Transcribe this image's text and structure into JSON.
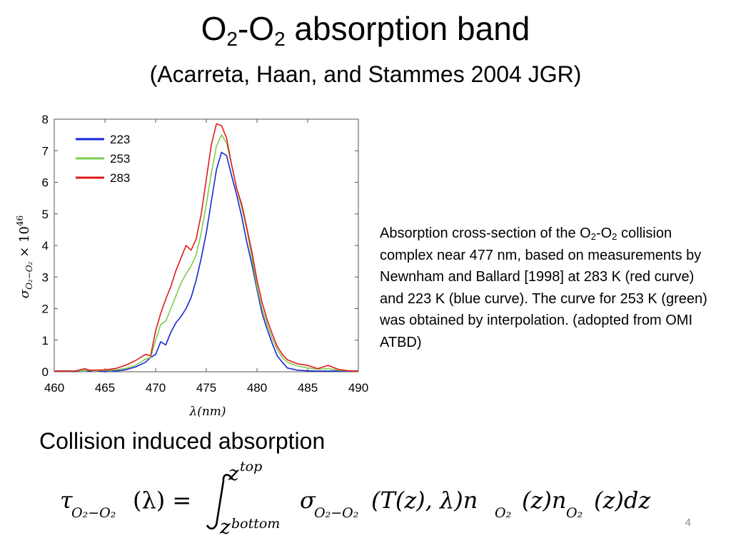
{
  "slide": {
    "title_part1": "O",
    "title_sub1": "2",
    "title_part2": "-O",
    "title_sub2": "2",
    "title_part3": " absorption band",
    "subtitle": "(Acarreta, Haan, and Stammes 2004 JGR)",
    "caption_part1": "Absorption cross-section of the O",
    "caption_sub1": "2",
    "caption_part2": "-O",
    "caption_sub2": "2",
    "caption_part3": " collision complex near 477 nm, based on measurements by Newnham and Ballard [1998] at 283 K (red curve) and 223 K (blue curve). The curve for 253 K (green) was obtained by interpolation. (adopted from OMI ATBD)",
    "section_heading": "Collision induced absorption",
    "page_number": "4"
  },
  "equation": {
    "lhs_tau": "τ",
    "lhs_sub": "O₂−O₂",
    "lhs_arg": "(λ) =",
    "upper_limit": "z",
    "upper_limit_sup": "top",
    "lower_limit": "z",
    "lower_limit_sub": "bottom",
    "integrand_sigma": "σ",
    "integrand_sigma_sub": "O₂−O₂",
    "integrand_args": "(T(z), λ)n",
    "n1_sub": "O₂",
    "mid": "(z)n",
    "n2_sub": "O₂",
    "tail": "(z)dz"
  },
  "chart_data": {
    "type": "line",
    "xlabel": "λ(nm)",
    "ylabel": "σ_{O₂−O₂} × 10⁴⁶",
    "ylabel_sigma": "σ",
    "ylabel_sub": "O₂−O₂",
    "ylabel_times": "× 10",
    "ylabel_exp": "46",
    "xlim": [
      460,
      490
    ],
    "ylim": [
      0,
      8
    ],
    "xticks": [
      460,
      465,
      470,
      475,
      480,
      485,
      490
    ],
    "yticks": [
      0,
      1,
      2,
      3,
      4,
      5,
      6,
      7,
      8
    ],
    "legend_position": "top-left",
    "grid": false,
    "series": [
      {
        "name": "223",
        "color": "#1a27d6",
        "x": [
          460,
          461,
          462,
          463,
          463.5,
          464,
          465,
          465.5,
          466,
          467,
          468,
          469,
          469.5,
          470,
          470.5,
          471,
          471.5,
          472,
          472.5,
          473,
          473.5,
          474,
          474.5,
          475,
          475.5,
          476,
          476.5,
          477,
          477.5,
          478,
          478.5,
          479,
          479.5,
          480,
          480.5,
          481,
          481.5,
          482,
          482.5,
          483,
          484,
          485,
          486,
          487,
          488,
          489,
          490
        ],
        "y": [
          0.02,
          0.03,
          0.02,
          0.05,
          0.02,
          0.05,
          0.0,
          0.04,
          0.02,
          0.06,
          0.15,
          0.3,
          0.45,
          0.55,
          0.95,
          0.85,
          1.25,
          1.55,
          1.75,
          2.0,
          2.35,
          2.9,
          3.6,
          4.4,
          5.4,
          6.4,
          6.95,
          6.85,
          6.2,
          5.6,
          4.9,
          4.1,
          3.4,
          2.6,
          1.85,
          1.35,
          0.9,
          0.5,
          0.3,
          0.12,
          0.05,
          0.03,
          0.02,
          0.02,
          0.02,
          0.02,
          0.02
        ]
      },
      {
        "name": "253",
        "color": "#7ccc50",
        "x": [
          460,
          461,
          462,
          463,
          464,
          465,
          466,
          467,
          468,
          469,
          469.5,
          470,
          470.5,
          471,
          471.5,
          472,
          472.5,
          473,
          473.5,
          474,
          474.5,
          475,
          475.5,
          476,
          476.5,
          477,
          477.5,
          478,
          478.5,
          479,
          479.5,
          480,
          480.5,
          481,
          481.5,
          482,
          482.5,
          483,
          484,
          485,
          486,
          487,
          488,
          489,
          490
        ],
        "y": [
          0.02,
          0.02,
          0.03,
          0.05,
          0.04,
          0.04,
          0.06,
          0.1,
          0.2,
          0.4,
          0.45,
          1.0,
          1.5,
          1.6,
          2.0,
          2.4,
          2.8,
          3.1,
          3.35,
          3.7,
          4.4,
          5.3,
          6.3,
          7.15,
          7.5,
          7.25,
          6.55,
          5.8,
          5.2,
          4.5,
          3.6,
          2.7,
          2.0,
          1.5,
          1.05,
          0.7,
          0.45,
          0.3,
          0.18,
          0.12,
          0.08,
          0.1,
          0.05,
          0.03,
          0.02
        ]
      },
      {
        "name": "283",
        "color": "#e11b1b",
        "x": [
          460,
          461,
          462,
          463,
          463.5,
          464,
          465,
          466,
          467,
          468,
          469,
          469.5,
          470,
          470.5,
          471,
          471.5,
          472,
          472.5,
          473,
          473.5,
          474,
          474.5,
          475,
          475.5,
          476,
          476.5,
          477,
          477.5,
          478,
          478.5,
          479,
          479.5,
          480,
          480.5,
          481,
          481.5,
          482,
          482.5,
          483,
          484,
          485,
          486,
          487,
          488,
          489,
          490
        ],
        "y": [
          0.02,
          0.02,
          0.02,
          0.1,
          0.05,
          0.05,
          0.06,
          0.1,
          0.2,
          0.35,
          0.55,
          0.5,
          1.3,
          1.85,
          2.3,
          2.7,
          3.2,
          3.6,
          4.0,
          3.85,
          4.2,
          5.0,
          6.1,
          7.2,
          7.85,
          7.8,
          7.4,
          6.55,
          5.8,
          5.3,
          4.55,
          3.8,
          2.9,
          2.2,
          1.65,
          1.2,
          0.8,
          0.55,
          0.38,
          0.25,
          0.2,
          0.1,
          0.2,
          0.08,
          0.03,
          0.02
        ]
      }
    ]
  }
}
